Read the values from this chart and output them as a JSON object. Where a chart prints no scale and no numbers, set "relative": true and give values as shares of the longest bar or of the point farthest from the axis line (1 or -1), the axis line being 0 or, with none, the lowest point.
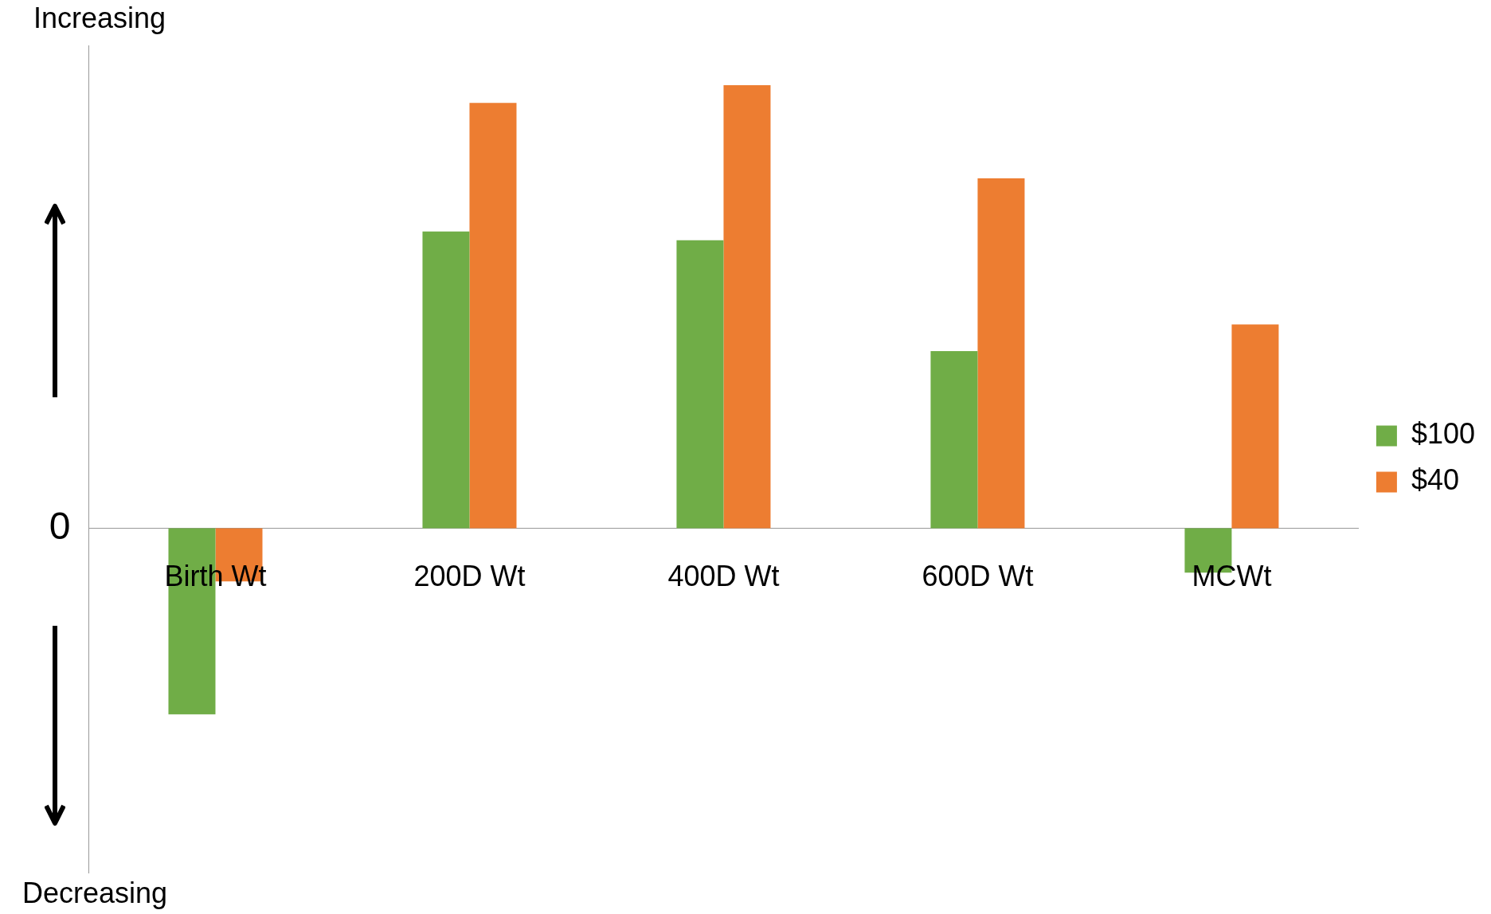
{
  "chart_data": {
    "type": "bar",
    "relative": true,
    "categories": [
      "Birth Wt",
      "200D Wt",
      "400D Wt",
      "600D Wt",
      "MCWt"
    ],
    "series": [
      {
        "name": "$100",
        "color": "#70ad47",
        "values": [
          -0.42,
          0.67,
          0.65,
          0.4,
          -0.1
        ]
      },
      {
        "name": "$40",
        "color": "#ed7d31",
        "values": [
          -0.12,
          0.96,
          1,
          0.79,
          0.46
        ]
      }
    ],
    "annotations": [
      "0",
      "Increasing",
      "Decreasing"
    ],
    "legend": "right",
    "grid": false
  }
}
